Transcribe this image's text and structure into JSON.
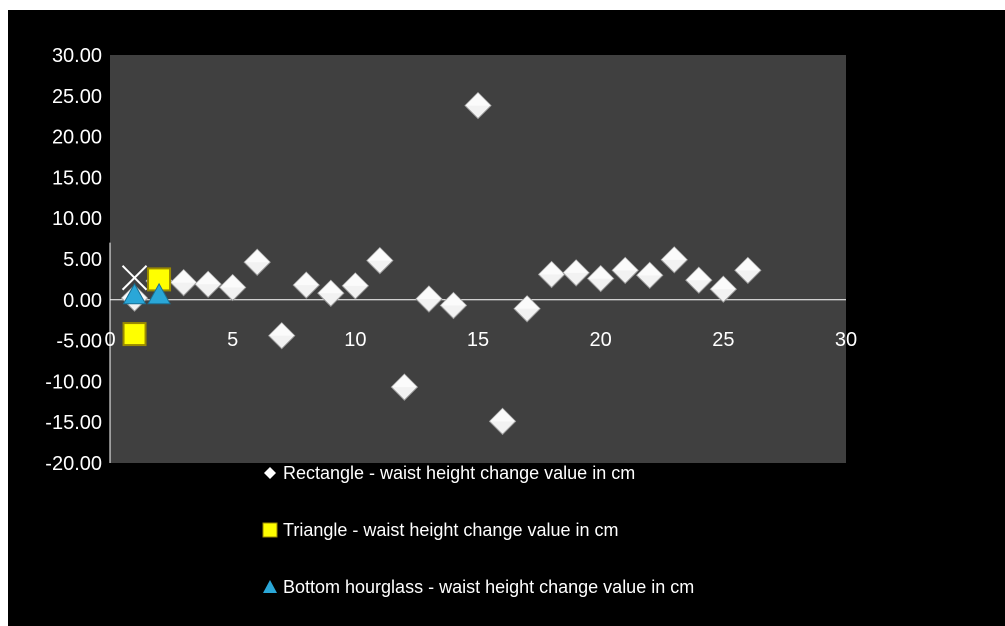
{
  "chart_data": {
    "type": "scatter",
    "title": "",
    "xlabel": "",
    "ylabel": "",
    "xlim": [
      0,
      30
    ],
    "ylim": [
      -20,
      30
    ],
    "x_ticks": [
      "0",
      "5",
      "10",
      "15",
      "20",
      "25",
      "30"
    ],
    "y_ticks": [
      "30.00",
      "25.00",
      "20.00",
      "15.00",
      "10.00",
      "5.00",
      "0.00",
      "-5.00",
      "-10.00",
      "-15.00",
      "-20.00"
    ],
    "grid": false,
    "legend_position": "bottom",
    "series": [
      {
        "name": "Rectangle - waist height change value in cm",
        "marker": "diamond",
        "color": "#ffffff",
        "points": [
          {
            "x": 1,
            "y": 0.2
          },
          {
            "x": 2,
            "y": 2.3
          },
          {
            "x": 3,
            "y": 2.1
          },
          {
            "x": 4,
            "y": 1.9
          },
          {
            "x": 5,
            "y": 1.5
          },
          {
            "x": 6,
            "y": 4.6
          },
          {
            "x": 7,
            "y": -4.4
          },
          {
            "x": 8,
            "y": 1.8
          },
          {
            "x": 9,
            "y": 0.8
          },
          {
            "x": 10,
            "y": 1.7
          },
          {
            "x": 11,
            "y": 4.8
          },
          {
            "x": 12,
            "y": -10.7
          },
          {
            "x": 13,
            "y": 0.1
          },
          {
            "x": 14,
            "y": -0.7
          },
          {
            "x": 15,
            "y": 23.8
          },
          {
            "x": 16,
            "y": -14.9
          },
          {
            "x": 17,
            "y": -1.1
          },
          {
            "x": 18,
            "y": 3.1
          },
          {
            "x": 19,
            "y": 3.3
          },
          {
            "x": 20,
            "y": 2.6
          },
          {
            "x": 21,
            "y": 3.6
          },
          {
            "x": 22,
            "y": 3.0
          },
          {
            "x": 23,
            "y": 4.9
          },
          {
            "x": 24,
            "y": 2.4
          },
          {
            "x": 25,
            "y": 1.3
          },
          {
            "x": 26,
            "y": 3.6
          }
        ]
      },
      {
        "name": "Triangle -  waist height change value in cm",
        "marker": "square",
        "color": "#ffff00",
        "points": [
          {
            "x": 1,
            "y": -4.2
          },
          {
            "x": 2,
            "y": 2.5
          }
        ]
      },
      {
        "name": "Bottom hourglass - waist height change value in cm",
        "marker": "triangle",
        "color": "#2aa7d8",
        "points": [
          {
            "x": 1,
            "y": 0.6
          },
          {
            "x": 2,
            "y": 0.6
          }
        ]
      },
      {
        "name": "",
        "marker": "x",
        "color": "#ffffff",
        "in_legend": false,
        "points": [
          {
            "x": 1,
            "y": 2.7
          }
        ]
      }
    ]
  }
}
